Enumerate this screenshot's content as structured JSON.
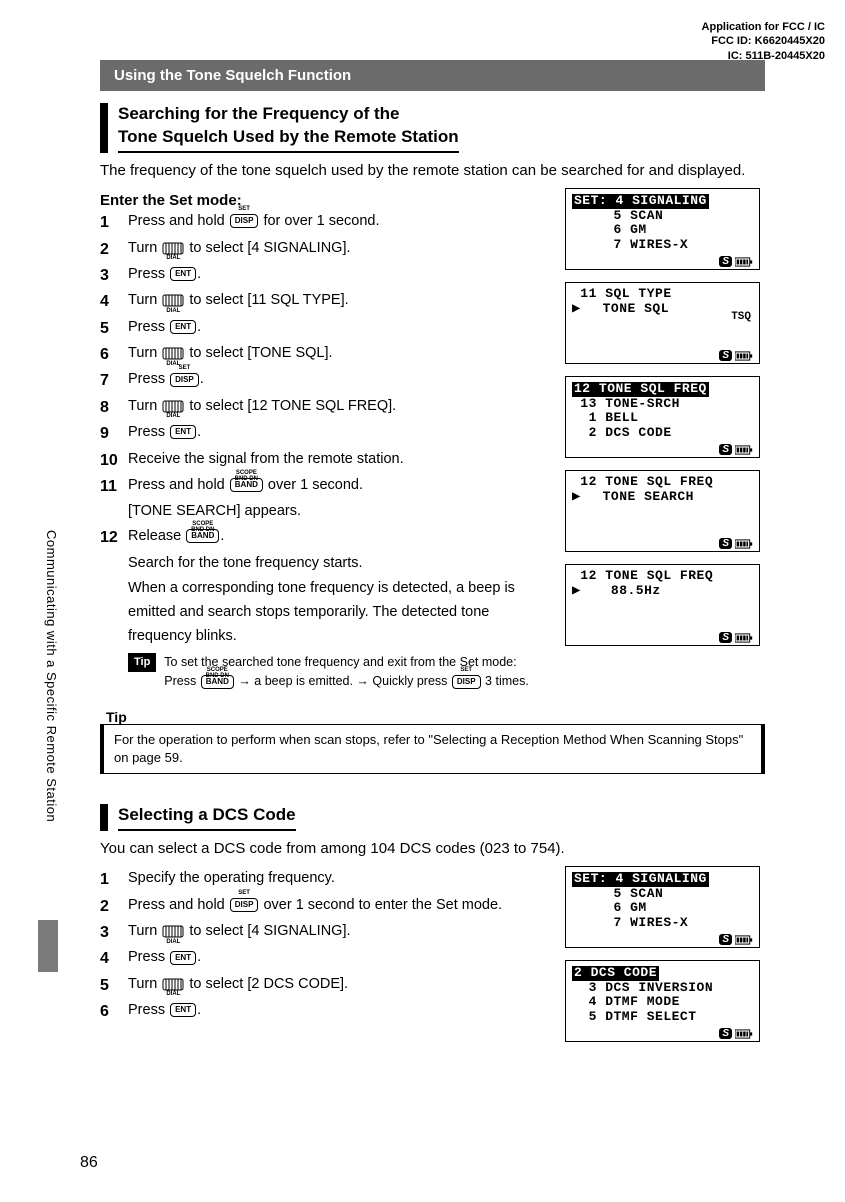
{
  "header": {
    "line1": "Application for FCC / IC",
    "line2": "FCC ID: K6620445X20",
    "line3": "IC: 511B-20445X20"
  },
  "sideText": "Communicating with a Specific Remote Station",
  "pageNumber": "86",
  "sectionBar": "Using the Tone Squelch Function",
  "sub1": {
    "titleLine1": "Searching for the Frequency of the",
    "titleLine2": "Tone Squelch Used by the Remote Station",
    "intro": "The frequency of the tone squelch used by the remote station can be searched for and displayed.",
    "enterLabel": "Enter the Set mode:",
    "steps": [
      {
        "pre": "Press and hold ",
        "key": "DISP",
        "sup": "SET",
        "post": " for over 1 second."
      },
      {
        "pre": "Turn ",
        "dial": true,
        "post": " to select [4 SIGNALING]."
      },
      {
        "pre": "Press ",
        "key": "ENT",
        "post": "."
      },
      {
        "pre": "Turn ",
        "dial": true,
        "post": " to select [11 SQL TYPE]."
      },
      {
        "pre": "Press ",
        "key": "ENT",
        "post": "."
      },
      {
        "pre": "Turn ",
        "dial": true,
        "post": " to select [TONE SQL]."
      },
      {
        "pre": "Press ",
        "key": "DISP",
        "sup": "SET",
        "post": "."
      },
      {
        "pre": "Turn ",
        "dial": true,
        "post": " to select [12 TONE SQL FREQ]."
      },
      {
        "pre": "Press ",
        "key": "ENT",
        "post": "."
      },
      {
        "pre": "Receive the signal from the remote station.",
        "plain": true
      },
      {
        "pre": "Press and hold ",
        "key": "BAND",
        "sup": "SCOPE  BND DN",
        "post": " over 1 second."
      },
      {
        "pre": "Release ",
        "key": "BAND",
        "sup": "SCOPE  BND DN",
        "post": "."
      }
    ],
    "note11": "[TONE SEARCH] appears.",
    "note12a": "Search for the tone frequency starts.",
    "note12b": "When a corresponding tone frequency is detected, a beep is emitted and search stops temporarily. The detected tone frequency blinks.",
    "tipInline1": "To set the searched tone frequency and exit from the Set mode:",
    "tipInline2a": "Press ",
    "tipInline2b": " → a beep is emitted. → Quickly press ",
    "tipInline2c": " 3 times.",
    "tipBox": "For the operation to perform when scan stops, refer to \"Selecting a Reception Method When Scanning Stops\" on page 59.",
    "tipBoxLabel": "Tip"
  },
  "sub2": {
    "title": "Selecting a DCS Code",
    "intro": "You can select a DCS code from among 104 DCS codes (023 to 754).",
    "steps": [
      {
        "pre": "Specify the operating frequency.",
        "plain": true
      },
      {
        "pre": "Press and hold ",
        "key": "DISP",
        "sup": "SET",
        "post": " over 1 second to enter the Set mode."
      },
      {
        "pre": "Turn ",
        "dial": true,
        "post": " to select [4 SIGNALING]."
      },
      {
        "pre": "Press ",
        "key": "ENT",
        "post": "."
      },
      {
        "pre": "Turn ",
        "dial": true,
        "post": " to select [2 DCS CODE]."
      },
      {
        "pre": "Press ",
        "key": "ENT",
        "post": "."
      }
    ]
  },
  "lcd": {
    "screen1": {
      "l1": "SET: 4 SIGNALING",
      "hl1": true,
      "l2": "     5 SCAN",
      "l3": "     6 GM",
      "l4": "     7 WIRES-X"
    },
    "screen2": {
      "l1": " 11 SQL TYPE",
      "l2": "",
      "cursor": "▶",
      "l3": "TONE SQL",
      "right": "TSQ"
    },
    "screen3": {
      "l1": "12 TONE SQL FREQ",
      "hl1": true,
      "l2": " 13 TONE-SRCH",
      "l3": "  1 BELL",
      "l4": "  2 DCS CODE"
    },
    "screen4": {
      "l1": " 12 TONE SQL FREQ",
      "cursor": "▶",
      "l3": "TONE SEARCH"
    },
    "screen5": {
      "l1": " 12 TONE SQL FREQ",
      "cursor": "▶",
      "l3": " 88.5Hz"
    },
    "screen6": {
      "l1": "SET: 4 SIGNALING",
      "hl1": true,
      "l2": "     5 SCAN",
      "l3": "     6 GM",
      "l4": "     7 WIRES-X"
    },
    "screen7": {
      "l1": "2 DCS CODE",
      "hl1": true,
      "l2": "  3 DCS INVERSION",
      "l3": "  4 DTMF MODE",
      "l4": "  5 DTMF SELECT"
    }
  },
  "keyLabels": {
    "dial": "DIAL",
    "disp": "DISP",
    "band": "BAND",
    "ent": "ENT"
  },
  "tipBadge": "Tip"
}
